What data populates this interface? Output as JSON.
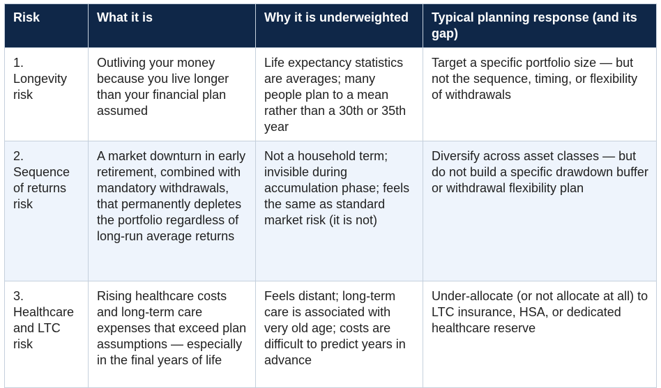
{
  "table": {
    "header": [
      "Risk",
      "What it is",
      "Why it is underweighted",
      "Typical planning response (and its gap)"
    ],
    "rows": [
      [
        "1. Longevity risk",
        "Outliving your money because you live longer than your financial plan assumed",
        "Life expectancy statistics are averages; many people plan to a mean rather than a 30th or 35th year",
        "Target a specific portfolio size — but not the sequence, timing, or flexibility of withdrawals"
      ],
      [
        "2. Sequence of returns risk",
        "A market downturn in early retirement, combined with mandatory withdrawals, that permanently depletes the portfolio regardless of long-run average returns",
        "Not a household term; invisible during accumulation phase; feels the same as standard market risk (it is not)",
        "Diversify across asset classes — but do not build a specific drawdown buffer or withdrawal flexibility plan"
      ],
      [
        "3. Healthcare and LTC risk",
        "Rising healthcare costs and long-term care expenses that exceed plan assumptions — especially in the final years of life",
        "Feels distant; long-term care is associated with very old age; costs are difficult to predict years in advance",
        "Under-allocate (or not allocate at all) to LTC insurance, HSA, or dedicated healthcare reserve"
      ]
    ]
  }
}
